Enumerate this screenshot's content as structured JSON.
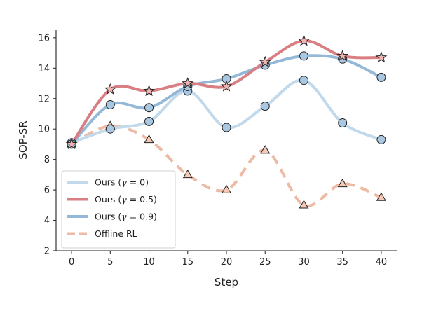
{
  "chart_data": {
    "type": "line",
    "xlabel": "Step",
    "ylabel": "SOP-SR",
    "xlim": [
      -2,
      42
    ],
    "ylim": [
      2,
      16.5
    ],
    "xticks": [
      0,
      5,
      10,
      15,
      20,
      25,
      30,
      35,
      40
    ],
    "yticks": [
      2,
      4,
      6,
      8,
      10,
      12,
      14,
      16
    ],
    "grid": false,
    "legend_position": "lower-left",
    "x": [
      0,
      5,
      10,
      15,
      20,
      25,
      30,
      35,
      40
    ],
    "series": [
      {
        "name": "Ours ($\\gamma = 0$)",
        "values": [
          9.1,
          10.0,
          10.5,
          12.5,
          10.1,
          11.5,
          13.2,
          10.4,
          9.3
        ],
        "color": "#c2d9ec",
        "marker": "circle",
        "dash": "solid"
      },
      {
        "name": "Ours ($\\gamma = 0.5$)",
        "values": [
          9.0,
          12.6,
          12.5,
          13.0,
          12.8,
          14.4,
          15.8,
          14.8,
          14.7
        ],
        "color": "#d97f83",
        "marker": "star",
        "dash": "solid"
      },
      {
        "name": "Ours ($\\gamma = 0.9$)",
        "values": [
          9.0,
          11.6,
          11.4,
          12.8,
          13.3,
          14.2,
          14.8,
          14.6,
          13.4
        ],
        "color": "#93b8d8",
        "marker": "circle",
        "dash": "solid"
      },
      {
        "name": "Offline RL",
        "values": [
          9.0,
          10.2,
          9.3,
          7.0,
          6.0,
          8.6,
          5.0,
          6.4,
          5.5
        ],
        "color": "#edbaa5",
        "marker": "triangle",
        "dash": "dashed"
      }
    ],
    "marker_fill": "#a9c7e1"
  },
  "legend": {
    "items": [
      {
        "prefix": "Ours (",
        "symbol": "γ",
        "suffix": " = 0)"
      },
      {
        "prefix": "Ours (",
        "symbol": "γ",
        "suffix": " = 0.5)"
      },
      {
        "prefix": "Ours (",
        "symbol": "γ",
        "suffix": " = 0.9)"
      },
      {
        "prefix": "Offline RL",
        "symbol": "",
        "suffix": ""
      }
    ]
  }
}
